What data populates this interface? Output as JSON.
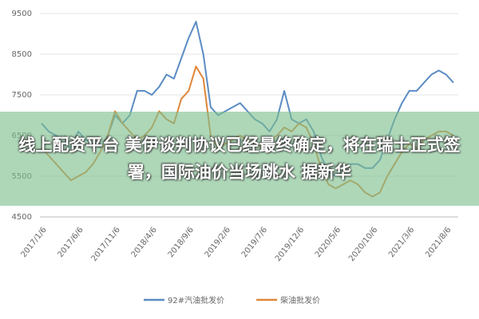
{
  "chart_data": {
    "type": "line",
    "categories": [
      "2017/1/6",
      null,
      null,
      null,
      null,
      "2017/6/6",
      null,
      null,
      null,
      null,
      "2017/11/6",
      null,
      null,
      null,
      null,
      "2018/4/6",
      null,
      null,
      null,
      null,
      "2018/9/6",
      null,
      null,
      null,
      null,
      "2019/2/6",
      null,
      null,
      null,
      null,
      "2019/7/6",
      null,
      null,
      null,
      null,
      "2019/12/6",
      null,
      null,
      null,
      null,
      "2020/5/6",
      null,
      null,
      null,
      null,
      "2020/10/6",
      null,
      null,
      null,
      null,
      "2021/3/6",
      null,
      null,
      null,
      null,
      "2021/8/6",
      null
    ],
    "series": [
      {
        "name": "92#汽油批发价",
        "color": "#5b8cc4",
        "values": [
          6800,
          6600,
          6500,
          6300,
          6200,
          6600,
          6400,
          6300,
          6200,
          6500,
          7000,
          6800,
          7000,
          7600,
          7600,
          7500,
          7700,
          8000,
          7900,
          8400,
          8900,
          9300,
          8500,
          7200,
          7000,
          7100,
          7200,
          7300,
          7100,
          6900,
          6800,
          6600,
          6900,
          7600,
          6900,
          6800,
          6900,
          6600,
          6000,
          5600,
          5500,
          5700,
          5800,
          5800,
          5700,
          5700,
          5900,
          6400,
          6900,
          7300,
          7600,
          7600,
          7800,
          8000,
          8100,
          8000,
          7800
        ]
      },
      {
        "name": "柴油批发价",
        "color": "#e0873a",
        "values": [
          6200,
          6000,
          5800,
          5600,
          5400,
          5500,
          5600,
          5800,
          6100,
          6500,
          7100,
          6800,
          6600,
          6400,
          6500,
          6700,
          7100,
          6900,
          6800,
          7400,
          7600,
          8200,
          7900,
          6500,
          6200,
          6300,
          6400,
          6500,
          6400,
          6300,
          6200,
          6400,
          6500,
          6700,
          6600,
          6800,
          6700,
          6300,
          5700,
          5300,
          5200,
          5300,
          5400,
          5300,
          5100,
          5000,
          5100,
          5500,
          5800,
          6100,
          6300,
          6200,
          6400,
          6500,
          6600,
          6600,
          6500
        ]
      }
    ],
    "ylim": [
      4500,
      9500
    ],
    "yticks": [
      4500,
      5500,
      6500,
      7500,
      8500,
      9500
    ],
    "grid": true,
    "overlay": {
      "text": "线上配资平台 美伊谈判协议已经最终确定，将在瑞士正式签署，国际油价当场跳水 据新华"
    }
  }
}
